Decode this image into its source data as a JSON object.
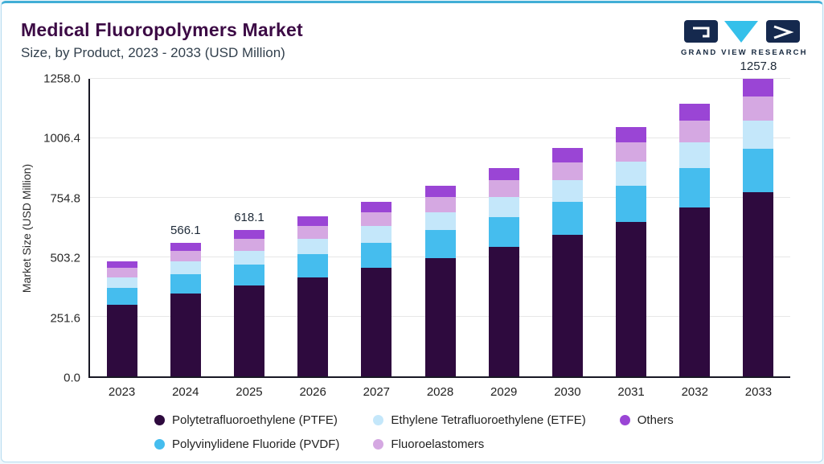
{
  "header": {
    "title": "Medical Fluoropolymers Market",
    "subtitle": "Size, by Product, 2023 - 2033 (USD Million)",
    "logo_text": "GRAND VIEW RESEARCH"
  },
  "chart_data": {
    "type": "bar",
    "stacked": true,
    "title": "Medical Fluoropolymers Market Size, by Product, 2023 - 2033 (USD Million)",
    "xlabel": "",
    "ylabel": "Market Size (USD Million)",
    "ylim": [
      0,
      1258.0
    ],
    "yticks": [
      0.0,
      251.6,
      503.2,
      754.8,
      1006.4,
      1258.0
    ],
    "grid": "horizontal",
    "legend_position": "bottom",
    "categories": [
      "2023",
      "2024",
      "2025",
      "2026",
      "2027",
      "2028",
      "2029",
      "2030",
      "2031",
      "2032",
      "2033"
    ],
    "series": [
      {
        "name": "Polytetrafluoroethylene (PTFE)",
        "color": "#2e0a3e",
        "values": [
          302.1,
          351.0,
          383.2,
          418.9,
          457.8,
          500.4,
          546.9,
          597.7,
          653.4,
          714.1,
          779.8
        ]
      },
      {
        "name": "Polyvinylidene Fluoride (PVDF)",
        "color": "#45bdee",
        "values": [
          70.6,
          82.1,
          89.6,
          98.0,
          107.1,
          117.0,
          127.9,
          139.8,
          152.8,
          167.0,
          182.4
        ]
      },
      {
        "name": "Ethylene Tetrafluoroethylene (ETFE)",
        "color": "#c4e7fa",
        "values": [
          46.3,
          53.8,
          58.7,
          64.2,
          70.1,
          76.7,
          83.8,
          91.6,
          100.1,
          109.4,
          119.5
        ]
      },
      {
        "name": "Fluoroelastomers",
        "color": "#d5a8e2",
        "values": [
          39.0,
          45.3,
          49.4,
          54.0,
          59.1,
          64.6,
          70.6,
          77.1,
          84.3,
          92.1,
          100.6
        ]
      },
      {
        "name": "Others",
        "color": "#9a45d5",
        "values": [
          29.2,
          33.9,
          37.2,
          40.5,
          44.3,
          48.4,
          52.9,
          57.9,
          63.2,
          69.1,
          75.5
        ]
      }
    ],
    "totals": [
      487.2,
      566.1,
      618.1,
      675.6,
      738.4,
      807.1,
      882.1,
      964.1,
      1053.8,
      1151.8,
      1257.8
    ],
    "bar_labels": {
      "2024": "566.1",
      "2025": "618.1",
      "2033": "1257.8"
    },
    "legend_order": [
      0,
      2,
      4,
      1,
      3
    ],
    "colors": {
      "title": "#3c0a45",
      "accent_line": "#41aed6",
      "axis": "#181824",
      "gridline": "#e7e7e7"
    }
  }
}
